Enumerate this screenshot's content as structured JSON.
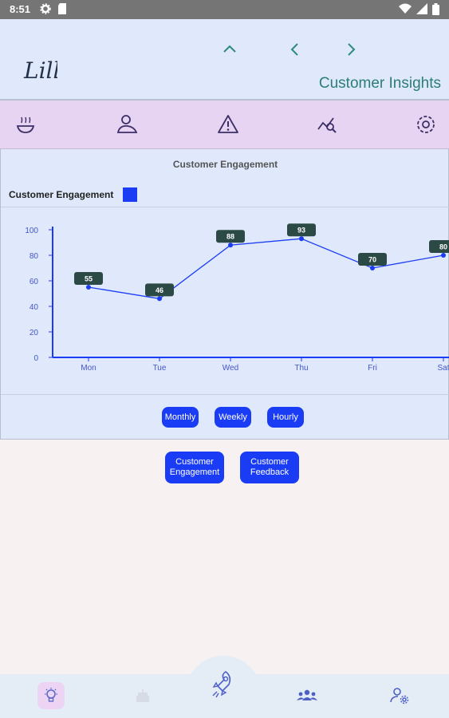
{
  "status_bar": {
    "time": "8:51",
    "left_icons": [
      "gear-icon",
      "sd-card-icon"
    ],
    "right_icons": [
      "wifi-icon",
      "signal-icon",
      "battery-icon"
    ]
  },
  "header": {
    "logo_text": "Lill",
    "title": "Customer Insights",
    "nav": [
      "chevron-up-icon",
      "chevron-left-icon",
      "chevron-right-icon"
    ]
  },
  "toolbar": {
    "icons": [
      "bowl-icon",
      "user-desk-icon",
      "warning-icon",
      "chart-search-icon",
      "settings-icon"
    ]
  },
  "colors": {
    "accent": "#1a3cf5",
    "label_bg": "#2c4a45",
    "teal": "#2c8a84",
    "toolbar_bg": "#e7d3f2",
    "panel_bg": "#dfe9fb"
  },
  "chart_data": {
    "type": "line",
    "title": "Customer Engagement",
    "categories": [
      "Mon",
      "Tue",
      "Wed",
      "Thu",
      "Fri",
      "Sat"
    ],
    "series": [
      {
        "name": "Customer Engagement",
        "values": [
          55,
          46,
          88,
          93,
          70,
          80
        ]
      }
    ],
    "yticks": [
      0,
      20,
      40,
      60,
      80,
      100
    ],
    "ylim": [
      0,
      100
    ],
    "legend": "top-left",
    "data_labels": true,
    "grid": false
  },
  "range_buttons": [
    "Monthly",
    "Weekly",
    "Hourly"
  ],
  "view_buttons": [
    "Customer\nEngagement",
    "Customer\nFeedback"
  ],
  "bottom_nav": {
    "items": [
      "lightbulb-icon",
      "cake-icon",
      "rocket-icon",
      "team-icon",
      "user-settings-icon"
    ],
    "active": "lightbulb-icon"
  }
}
